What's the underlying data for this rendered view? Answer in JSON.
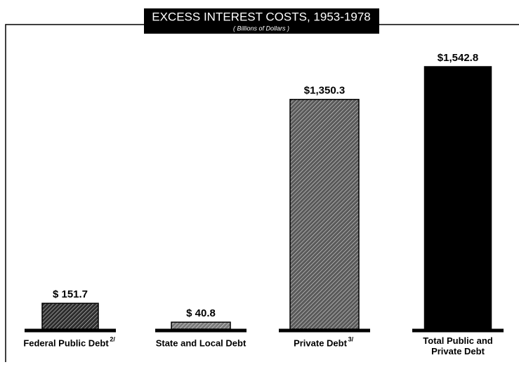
{
  "chart_data": {
    "type": "bar",
    "title": "EXCESS INTEREST COSTS, 1953-1978",
    "subtitle": "( Billions of Dollars )",
    "categories": [
      "Federal Public Debt",
      "State and Local Debt",
      "Private Debt",
      "Total Public and Private Debt"
    ],
    "category_notes": [
      "2/",
      null,
      "3/",
      null
    ],
    "values": [
      151.7,
      40.8,
      1350.3,
      1542.8
    ],
    "value_labels": [
      "$ 151.7",
      "$ 40.8",
      "$1,350.3",
      "$1,542.8"
    ],
    "colors": [
      "#2e2e2e",
      "#7a7a7a",
      "#5a5a5a",
      "#000000"
    ]
  }
}
